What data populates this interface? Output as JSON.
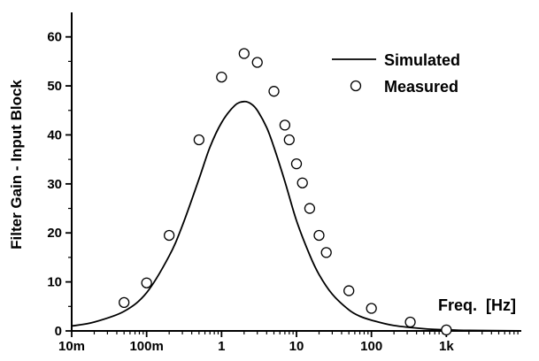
{
  "chart_data": {
    "type": "line",
    "title": "",
    "xlabel": "",
    "ylabel": "Filter Gain - Input Block",
    "x_scale": "log",
    "xlim": [
      0.01,
      10000
    ],
    "ylim": [
      0,
      65
    ],
    "x_ticks": [
      {
        "value": 0.01,
        "label": "10m"
      },
      {
        "value": 0.1,
        "label": "100m"
      },
      {
        "value": 1,
        "label": "1"
      },
      {
        "value": 10,
        "label": "10"
      },
      {
        "value": 100,
        "label": "100"
      },
      {
        "value": 1000,
        "label": "1k"
      }
    ],
    "y_ticks": [
      {
        "value": 0,
        "label": "0"
      },
      {
        "value": 10,
        "label": "10"
      },
      {
        "value": 20,
        "label": "20"
      },
      {
        "value": 30,
        "label": "30"
      },
      {
        "value": 40,
        "label": "40"
      },
      {
        "value": 50,
        "label": "50"
      },
      {
        "value": 60,
        "label": "60"
      }
    ],
    "grid": false,
    "legend_position": "top-right",
    "annotation": "Freq.  [Hz]",
    "series": [
      {
        "name": "Simulated",
        "style": "line",
        "color": "#000000",
        "x": [
          0.01,
          0.02,
          0.05,
          0.1,
          0.2,
          0.3,
          0.5,
          0.7,
          1,
          1.5,
          2,
          2.5,
          3,
          4,
          5,
          7,
          10,
          15,
          20,
          30,
          50,
          70,
          100,
          200,
          500,
          1000,
          2000,
          10000
        ],
        "y": [
          1.0,
          1.8,
          4.0,
          7.8,
          15.3,
          21.5,
          31.0,
          37.5,
          42.5,
          46.0,
          46.8,
          46.3,
          45.0,
          41.5,
          37.5,
          30.5,
          22.5,
          15.5,
          11.5,
          7.5,
          4.3,
          3.0,
          2.2,
          1.1,
          0.45,
          0.22,
          0.1,
          0.02
        ]
      },
      {
        "name": "Measured",
        "style": "marker",
        "marker": "open-circle",
        "color": "#000000",
        "x": [
          0.05,
          0.1,
          0.2,
          0.5,
          1,
          2,
          3,
          5,
          7,
          8,
          10,
          12,
          15,
          20,
          25,
          50,
          100,
          330,
          1000
        ],
        "y": [
          5.8,
          9.8,
          19.5,
          39.0,
          51.8,
          56.6,
          54.8,
          48.9,
          42.0,
          39.0,
          34.1,
          30.2,
          25.0,
          19.5,
          16.0,
          8.2,
          4.6,
          1.8,
          0.2
        ]
      }
    ]
  }
}
